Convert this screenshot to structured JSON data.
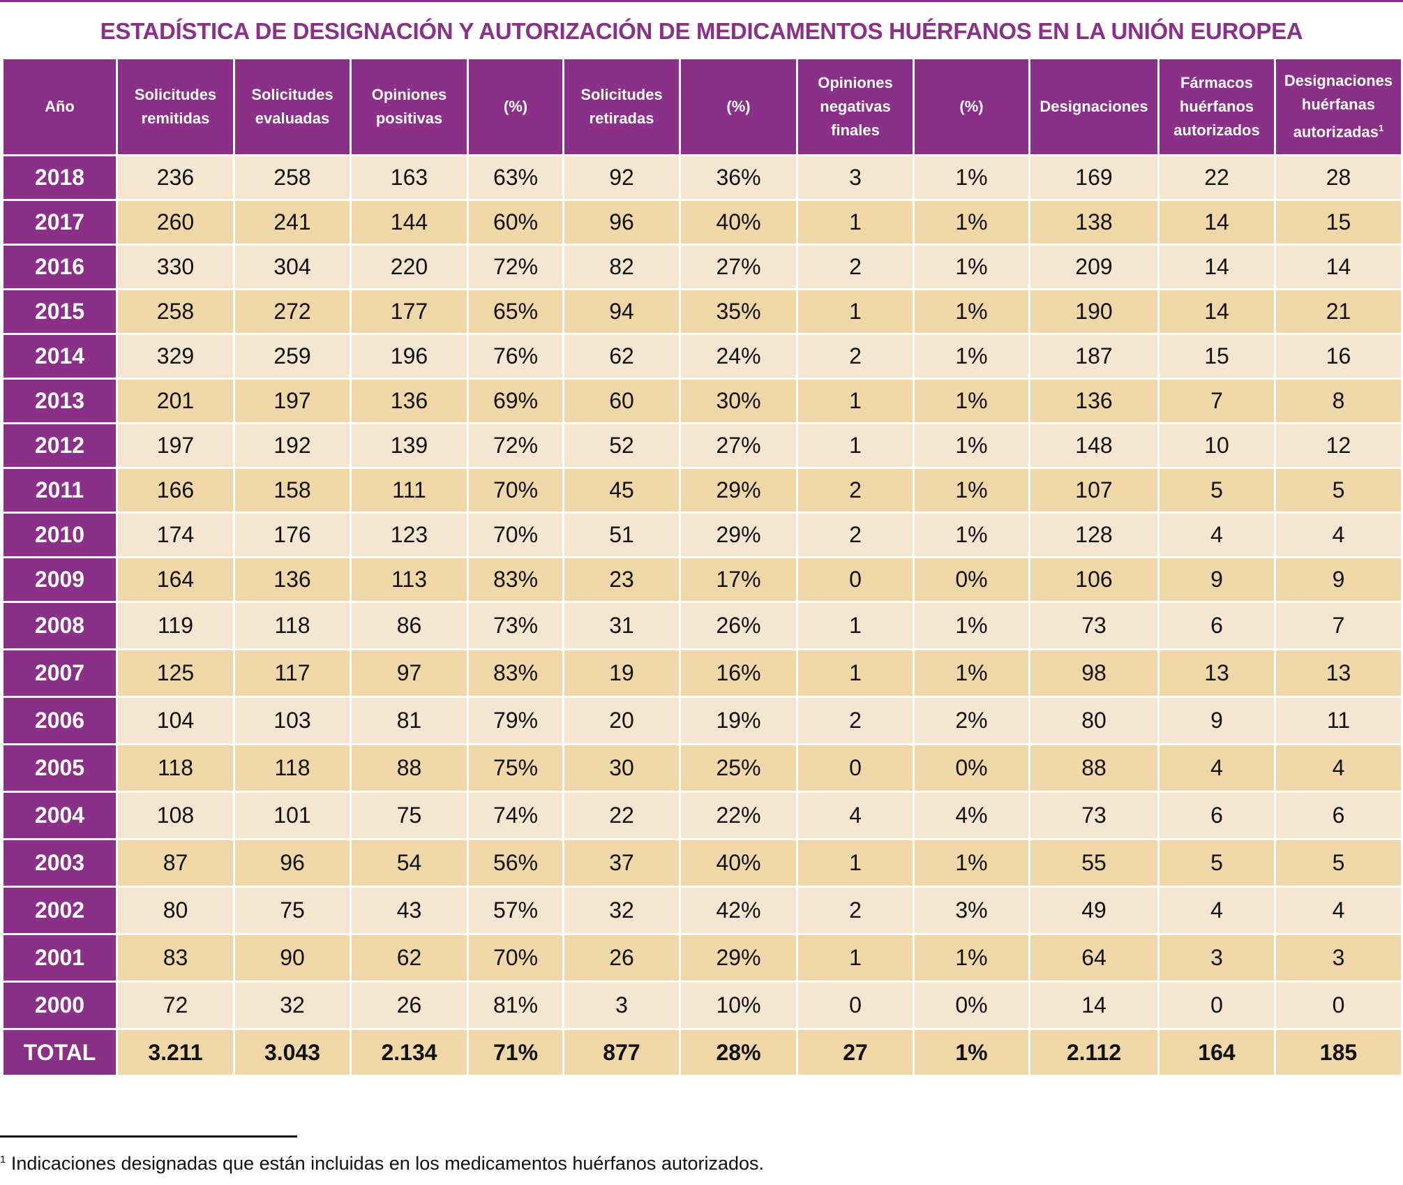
{
  "title": "ESTADÍSTICA DE DESIGNACIÓN Y AUTORIZACIÓN DE MEDICAMENTOS HUÉRFANOS EN LA UNIÓN EUROPEA",
  "colors": {
    "header": "#8B3088",
    "row_light": "#F5E6D2",
    "row_dark": "#EFD7A8"
  },
  "headers": [
    "Año",
    "Solicitudes\nremitidas",
    "Solicitudes\nevaluadas",
    "Opiniones\npositivas",
    "(%)",
    "Solicitudes\nretiradas",
    "(%)",
    "Opiniones\nnegativas\nfinales",
    "(%)",
    "Designaciones",
    "Fármacos\nhuérfanos\nautorizados",
    "Designaciones\nhuérfanas\nautorizadas"
  ],
  "header_footnote_mark": "1",
  "rows": [
    [
      "2018",
      "236",
      "258",
      "163",
      "63%",
      "92",
      "36%",
      "3",
      "1%",
      "169",
      "22",
      "28"
    ],
    [
      "2017",
      "260",
      "241",
      "144",
      "60%",
      "96",
      "40%",
      "1",
      "1%",
      "138",
      "14",
      "15"
    ],
    [
      "2016",
      "330",
      "304",
      "220",
      "72%",
      "82",
      "27%",
      "2",
      "1%",
      "209",
      "14",
      "14"
    ],
    [
      "2015",
      "258",
      "272",
      "177",
      "65%",
      "94",
      "35%",
      "1",
      "1%",
      "190",
      "14",
      "21"
    ],
    [
      "2014",
      "329",
      "259",
      "196",
      "76%",
      "62",
      "24%",
      "2",
      "1%",
      "187",
      "15",
      "16"
    ],
    [
      "2013",
      "201",
      "197",
      "136",
      "69%",
      "60",
      "30%",
      "1",
      "1%",
      "136",
      "7",
      "8"
    ],
    [
      "2012",
      "197",
      "192",
      "139",
      "72%",
      "52",
      "27%",
      "1",
      "1%",
      "148",
      "10",
      "12"
    ],
    [
      "2011",
      "166",
      "158",
      "111",
      "70%",
      "45",
      "29%",
      "2",
      "1%",
      "107",
      "5",
      "5"
    ],
    [
      "2010",
      "174",
      "176",
      "123",
      "70%",
      "51",
      "29%",
      "2",
      "1%",
      "128",
      "4",
      "4"
    ],
    [
      "2009",
      "164",
      "136",
      "113",
      "83%",
      "23",
      "17%",
      "0",
      "0%",
      "106",
      "9",
      "9"
    ],
    [
      "2008",
      "119",
      "118",
      "86",
      "73%",
      "31",
      "26%",
      "1",
      "1%",
      "73",
      "6",
      "7"
    ],
    [
      "2007",
      "125",
      "117",
      "97",
      "83%",
      "19",
      "16%",
      "1",
      "1%",
      "98",
      "13",
      "13"
    ],
    [
      "2006",
      "104",
      "103",
      "81",
      "79%",
      "20",
      "19%",
      "2",
      "2%",
      "80",
      "9",
      "11"
    ],
    [
      "2005",
      "118",
      "118",
      "88",
      "75%",
      "30",
      "25%",
      "0",
      "0%",
      "88",
      "4",
      "4"
    ],
    [
      "2004",
      "108",
      "101",
      "75",
      "74%",
      "22",
      "22%",
      "4",
      "4%",
      "73",
      "6",
      "6"
    ],
    [
      "2003",
      "87",
      "96",
      "54",
      "56%",
      "37",
      "40%",
      "1",
      "1%",
      "55",
      "5",
      "5"
    ],
    [
      "2002",
      "80",
      "75",
      "43",
      "57%",
      "32",
      "42%",
      "2",
      "3%",
      "49",
      "4",
      "4"
    ],
    [
      "2001",
      "83",
      "90",
      "62",
      "70%",
      "26",
      "29%",
      "1",
      "1%",
      "64",
      "3",
      "3"
    ],
    [
      "2000",
      "72",
      "32",
      "26",
      "81%",
      "3",
      "10%",
      "0",
      "0%",
      "14",
      "0",
      "0"
    ]
  ],
  "total": [
    "TOTAL",
    "3.211",
    "3.043",
    "2.134",
    "71%",
    "877",
    "28%",
    "27",
    "1%",
    "2.112",
    "164",
    "185"
  ],
  "footnote": {
    "mark": "1",
    "text": " Indicaciones designadas que están incluidas en los medicamentos huérfanos autorizados."
  }
}
